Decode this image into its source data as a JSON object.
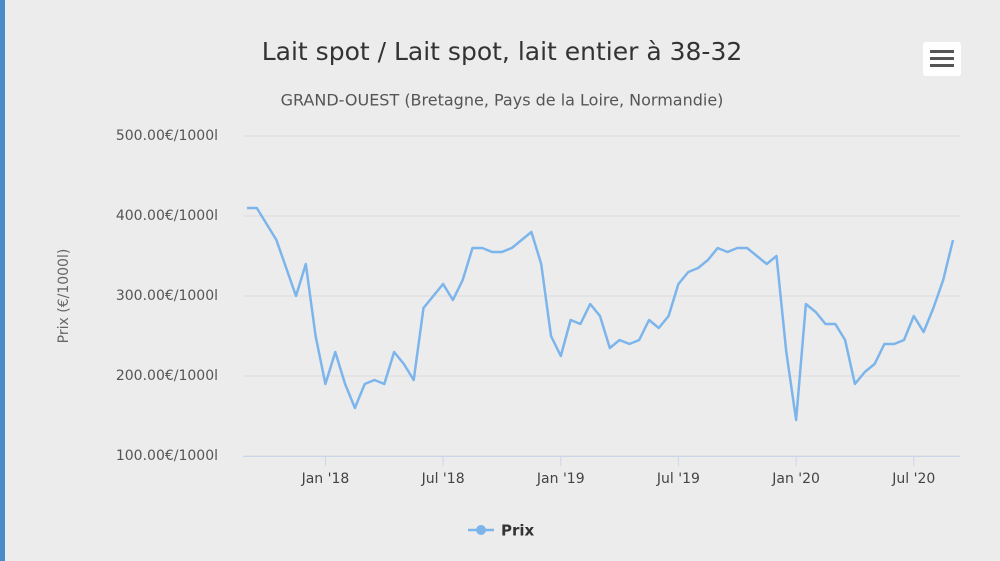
{
  "chart_data": {
    "type": "line",
    "title": "Lait spot / Lait spot, lait entier à 38-32",
    "subtitle": "GRAND-OUEST (Bretagne, Pays de la Loire, Normandie)",
    "y_label": "Prix (€/1000l)",
    "categories": [
      null,
      null,
      null,
      null,
      null,
      null,
      null,
      null,
      "Jan '18",
      null,
      null,
      null,
      null,
      null,
      null,
      null,
      null,
      null,
      null,
      null,
      "Jul '18",
      null,
      null,
      null,
      null,
      null,
      null,
      null,
      null,
      null,
      null,
      null,
      "Jan '19",
      null,
      null,
      null,
      null,
      null,
      null,
      null,
      null,
      null,
      null,
      null,
      "Jul '19",
      null,
      null,
      null,
      null,
      null,
      null,
      null,
      null,
      null,
      null,
      null,
      "Jan '20",
      null,
      null,
      null,
      null,
      null,
      null,
      null,
      null,
      null,
      null,
      null,
      "Jul '20",
      null,
      null,
      null,
      null
    ],
    "series": [
      {
        "name": "Prix",
        "color": "#7cb5ec",
        "values": [
          410,
          410,
          390,
          370,
          335,
          300,
          340,
          250,
          190,
          230,
          190,
          160,
          190,
          195,
          190,
          230,
          215,
          195,
          285,
          300,
          315,
          295,
          320,
          360,
          360,
          355,
          355,
          360,
          370,
          380,
          340,
          250,
          225,
          270,
          265,
          290,
          275,
          235,
          245,
          240,
          245,
          270,
          260,
          275,
          315,
          330,
          335,
          345,
          360,
          355,
          360,
          360,
          350,
          340,
          350,
          230,
          145,
          290,
          280,
          265,
          265,
          245,
          190,
          205,
          215,
          240,
          240,
          245,
          275,
          255,
          285,
          320,
          370
        ]
      }
    ],
    "ylim": [
      100,
      500
    ],
    "yticks": [
      {
        "value": 100,
        "label": "100.00€/1000l"
      },
      {
        "value": 200,
        "label": "200.00€/1000l"
      },
      {
        "value": 300,
        "label": "300.00€/1000l"
      },
      {
        "value": 400,
        "label": "400.00€/1000l"
      },
      {
        "value": 500,
        "label": "500.00€/1000l"
      }
    ],
    "grid": true
  }
}
